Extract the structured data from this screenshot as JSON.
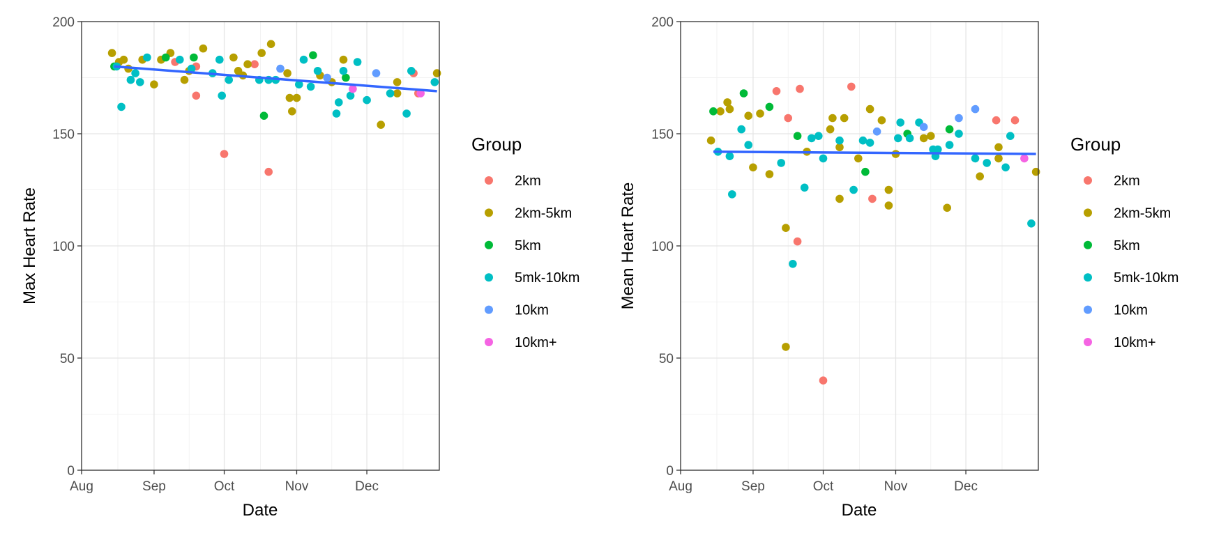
{
  "chart_data": [
    {
      "type": "scatter",
      "xlabel": "Date",
      "ylabel": "Max Heart Rate",
      "xlim": [
        "2020-08-01",
        "2020-12-31"
      ],
      "ylim": [
        0,
        200
      ],
      "x_ticks": [
        "Aug",
        "Sep",
        "Oct",
        "Nov",
        "Dec"
      ],
      "x_tick_dates": [
        "2020-08-01",
        "2020-09-01",
        "2020-10-01",
        "2020-11-01",
        "2020-12-01"
      ],
      "y_ticks": [
        0,
        50,
        100,
        150,
        200
      ],
      "grid": true,
      "trend_line": {
        "color": "#3366FF",
        "start": [
          "2020-08-15",
          180
        ],
        "end": [
          "2020-12-31",
          169
        ]
      },
      "series": [
        {
          "name": "2km",
          "color": "#F8766D",
          "points": [
            [
              "2020-09-10",
              182
            ],
            [
              "2020-09-19",
              180
            ],
            [
              "2020-09-19",
              167
            ],
            [
              "2020-10-01",
              141
            ],
            [
              "2020-10-14",
              181
            ],
            [
              "2020-10-20",
              133
            ],
            [
              "2020-12-21",
              177
            ],
            [
              "2020-12-23",
              168
            ]
          ]
        },
        {
          "name": "2km-5km",
          "color": "#B79F00",
          "points": [
            [
              "2020-08-14",
              186
            ],
            [
              "2020-08-17",
              182
            ],
            [
              "2020-08-19",
              183
            ],
            [
              "2020-08-21",
              179
            ],
            [
              "2020-08-27",
              183
            ],
            [
              "2020-09-01",
              172
            ],
            [
              "2020-09-04",
              183
            ],
            [
              "2020-09-08",
              186
            ],
            [
              "2020-09-14",
              174
            ],
            [
              "2020-09-16",
              178
            ],
            [
              "2020-09-22",
              188
            ],
            [
              "2020-10-05",
              184
            ],
            [
              "2020-10-07",
              178
            ],
            [
              "2020-10-09",
              176
            ],
            [
              "2020-10-11",
              181
            ],
            [
              "2020-10-17",
              186
            ],
            [
              "2020-10-21",
              190
            ],
            [
              "2020-10-28",
              177
            ],
            [
              "2020-10-29",
              166
            ],
            [
              "2020-10-30",
              160
            ],
            [
              "2020-11-01",
              166
            ],
            [
              "2020-11-11",
              176
            ],
            [
              "2020-11-16",
              173
            ],
            [
              "2020-11-21",
              183
            ],
            [
              "2020-12-07",
              154
            ],
            [
              "2020-12-14",
              173
            ],
            [
              "2020-12-14",
              168
            ],
            [
              "2020-12-31",
              177
            ]
          ]
        },
        {
          "name": "5km",
          "color": "#00BA38",
          "points": [
            [
              "2020-08-15",
              180
            ],
            [
              "2020-09-06",
              184
            ],
            [
              "2020-09-18",
              184
            ],
            [
              "2020-10-18",
              158
            ],
            [
              "2020-11-08",
              185
            ],
            [
              "2020-11-22",
              175
            ]
          ]
        },
        {
          "name": "5mk-10km",
          "color": "#00BFC4",
          "points": [
            [
              "2020-08-16",
              180
            ],
            [
              "2020-08-18",
              162
            ],
            [
              "2020-08-22",
              174
            ],
            [
              "2020-08-24",
              177
            ],
            [
              "2020-08-26",
              173
            ],
            [
              "2020-08-29",
              184
            ],
            [
              "2020-09-12",
              183
            ],
            [
              "2020-09-17",
              179
            ],
            [
              "2020-09-26",
              177
            ],
            [
              "2020-09-29",
              183
            ],
            [
              "2020-09-30",
              167
            ],
            [
              "2020-10-03",
              174
            ],
            [
              "2020-10-16",
              174
            ],
            [
              "2020-10-20",
              174
            ],
            [
              "2020-10-23",
              174
            ],
            [
              "2020-11-02",
              172
            ],
            [
              "2020-11-04",
              183
            ],
            [
              "2020-11-07",
              171
            ],
            [
              "2020-11-10",
              178
            ],
            [
              "2020-11-18",
              159
            ],
            [
              "2020-11-19",
              164
            ],
            [
              "2020-11-21",
              178
            ],
            [
              "2020-11-24",
              167
            ],
            [
              "2020-11-27",
              182
            ],
            [
              "2020-12-01",
              165
            ],
            [
              "2020-12-11",
              168
            ],
            [
              "2020-12-18",
              159
            ],
            [
              "2020-12-20",
              178
            ],
            [
              "2020-12-30",
              173
            ]
          ]
        },
        {
          "name": "10km",
          "color": "#619CFF",
          "points": [
            [
              "2020-10-25",
              179
            ],
            [
              "2020-11-14",
              175
            ],
            [
              "2020-12-05",
              177
            ]
          ]
        },
        {
          "name": "10km+",
          "color": "#F564E3",
          "points": [
            [
              "2020-11-25",
              170
            ],
            [
              "2020-12-24",
              168
            ]
          ]
        }
      ],
      "legend": {
        "title": "Group",
        "placement": "right",
        "entries": [
          "2km",
          "2km-5km",
          "5km",
          "5mk-10km",
          "10km",
          "10km+"
        ]
      }
    },
    {
      "type": "scatter",
      "xlabel": "Date",
      "ylabel": "Mean Heart Rate",
      "xlim": [
        "2020-08-01",
        "2020-12-31"
      ],
      "ylim": [
        0,
        200
      ],
      "x_ticks": [
        "Aug",
        "Sep",
        "Oct",
        "Nov",
        "Dec"
      ],
      "x_tick_dates": [
        "2020-08-01",
        "2020-09-01",
        "2020-10-01",
        "2020-11-01",
        "2020-12-01"
      ],
      "y_ticks": [
        0,
        50,
        100,
        150,
        200
      ],
      "grid": true,
      "trend_line": {
        "color": "#3366FF",
        "start": [
          "2020-08-15",
          142
        ],
        "end": [
          "2020-12-31",
          141
        ]
      },
      "series": [
        {
          "name": "2km",
          "color": "#F8766D",
          "points": [
            [
              "2020-09-11",
              169
            ],
            [
              "2020-09-16",
              157
            ],
            [
              "2020-09-20",
              102
            ],
            [
              "2020-09-21",
              170
            ],
            [
              "2020-10-01",
              40
            ],
            [
              "2020-10-13",
              171
            ],
            [
              "2020-10-22",
              121
            ],
            [
              "2020-12-14",
              156
            ],
            [
              "2020-12-22",
              156
            ]
          ]
        },
        {
          "name": "2km-5km",
          "color": "#B79F00",
          "points": [
            [
              "2020-08-14",
              147
            ],
            [
              "2020-08-18",
              160
            ],
            [
              "2020-08-21",
              164
            ],
            [
              "2020-08-22",
              161
            ],
            [
              "2020-08-30",
              158
            ],
            [
              "2020-09-01",
              135
            ],
            [
              "2020-09-04",
              159
            ],
            [
              "2020-09-08",
              132
            ],
            [
              "2020-09-15",
              108
            ],
            [
              "2020-09-15",
              55
            ],
            [
              "2020-09-24",
              142
            ],
            [
              "2020-10-04",
              152
            ],
            [
              "2020-10-05",
              157
            ],
            [
              "2020-10-08",
              121
            ],
            [
              "2020-10-08",
              144
            ],
            [
              "2020-10-10",
              157
            ],
            [
              "2020-10-16",
              139
            ],
            [
              "2020-10-21",
              161
            ],
            [
              "2020-10-26",
              156
            ],
            [
              "2020-10-29",
              125
            ],
            [
              "2020-10-29",
              118
            ],
            [
              "2020-11-01",
              141
            ],
            [
              "2020-11-13",
              148
            ],
            [
              "2020-11-16",
              149
            ],
            [
              "2020-11-23",
              117
            ],
            [
              "2020-12-07",
              131
            ],
            [
              "2020-12-15",
              139
            ],
            [
              "2020-12-15",
              144
            ],
            [
              "2020-12-31",
              133
            ]
          ]
        },
        {
          "name": "5km",
          "color": "#00BA38",
          "points": [
            [
              "2020-08-15",
              160
            ],
            [
              "2020-08-28",
              168
            ],
            [
              "2020-09-08",
              162
            ],
            [
              "2020-09-20",
              149
            ],
            [
              "2020-10-19",
              133
            ],
            [
              "2020-11-06",
              150
            ],
            [
              "2020-11-24",
              152
            ]
          ]
        },
        {
          "name": "5mk-10km",
          "color": "#00BFC4",
          "points": [
            [
              "2020-08-17",
              142
            ],
            [
              "2020-08-22",
              140
            ],
            [
              "2020-08-23",
              123
            ],
            [
              "2020-08-27",
              152
            ],
            [
              "2020-08-30",
              145
            ],
            [
              "2020-09-13",
              137
            ],
            [
              "2020-09-18",
              92
            ],
            [
              "2020-09-23",
              126
            ],
            [
              "2020-09-26",
              148
            ],
            [
              "2020-09-29",
              149
            ],
            [
              "2020-10-01",
              139
            ],
            [
              "2020-10-08",
              147
            ],
            [
              "2020-10-14",
              125
            ],
            [
              "2020-10-18",
              147
            ],
            [
              "2020-10-21",
              146
            ],
            [
              "2020-11-02",
              148
            ],
            [
              "2020-11-03",
              155
            ],
            [
              "2020-11-07",
              148
            ],
            [
              "2020-11-11",
              155
            ],
            [
              "2020-11-17",
              143
            ],
            [
              "2020-11-18",
              140
            ],
            [
              "2020-11-19",
              143
            ],
            [
              "2020-11-24",
              145
            ],
            [
              "2020-11-28",
              150
            ],
            [
              "2020-12-05",
              139
            ],
            [
              "2020-12-10",
              137
            ],
            [
              "2020-12-18",
              135
            ],
            [
              "2020-12-20",
              149
            ],
            [
              "2020-12-29",
              110
            ]
          ]
        },
        {
          "name": "10km",
          "color": "#619CFF",
          "points": [
            [
              "2020-10-24",
              151
            ],
            [
              "2020-11-13",
              153
            ],
            [
              "2020-11-28",
              157
            ],
            [
              "2020-12-05",
              161
            ]
          ]
        },
        {
          "name": "10km+",
          "color": "#F564E3",
          "points": [
            [
              "2020-12-26",
              139
            ]
          ]
        }
      ],
      "legend": {
        "title": "Group",
        "placement": "right",
        "entries": [
          "2km",
          "2km-5km",
          "5km",
          "5mk-10km",
          "10km",
          "10km+"
        ]
      }
    }
  ]
}
